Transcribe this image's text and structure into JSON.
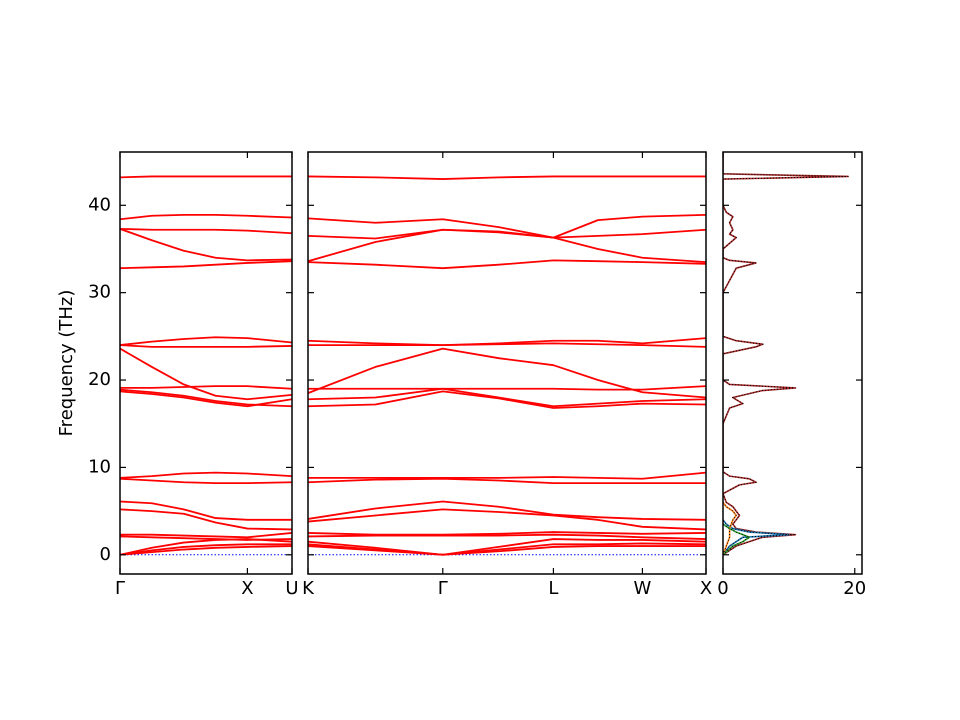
{
  "chart_data": [
    {
      "type": "line",
      "ylabel": "Frequency (THz)",
      "color": "#ff0000",
      "zero_line": true,
      "x": [
        0,
        0.25,
        0.5,
        0.75,
        1.0,
        1.35
      ],
      "xlim": [
        0,
        1.35
      ],
      "xticks": [
        {
          "value": 0,
          "label": "Γ"
        },
        {
          "value": 1.0,
          "label": "X"
        },
        {
          "value": 1.35,
          "label": "U"
        }
      ],
      "ylim": [
        -2.2,
        46.1
      ],
      "yticks": [
        0,
        10,
        20,
        30,
        40
      ],
      "series": [
        {
          "values": [
            43.2,
            43.3,
            43.3,
            43.3,
            43.3,
            43.3
          ]
        },
        {
          "values": [
            38.4,
            38.8,
            38.9,
            38.9,
            38.8,
            38.6
          ]
        },
        {
          "values": [
            37.3,
            37.2,
            37.2,
            37.2,
            37.1,
            36.8
          ]
        },
        {
          "values": [
            37.3,
            36.0,
            34.8,
            34.0,
            33.7,
            33.8
          ]
        },
        {
          "values": [
            32.8,
            32.9,
            33.0,
            33.2,
            33.4,
            33.6
          ]
        },
        {
          "values": [
            24.0,
            24.4,
            24.7,
            24.9,
            24.8,
            24.3
          ]
        },
        {
          "values": [
            24.0,
            23.8,
            23.8,
            23.8,
            23.8,
            23.9
          ]
        },
        {
          "values": [
            23.6,
            21.5,
            19.5,
            18.2,
            17.8,
            18.3
          ]
        },
        {
          "values": [
            19.1,
            19.1,
            19.2,
            19.3,
            19.3,
            19.0
          ]
        },
        {
          "values": [
            18.9,
            18.6,
            18.2,
            17.6,
            17.2,
            17.0
          ]
        },
        {
          "values": [
            18.7,
            18.4,
            18.0,
            17.4,
            17.0,
            17.8
          ]
        },
        {
          "values": [
            8.8,
            9.0,
            9.3,
            9.4,
            9.3,
            9.0
          ]
        },
        {
          "values": [
            8.7,
            8.5,
            8.3,
            8.2,
            8.2,
            8.3
          ]
        },
        {
          "values": [
            6.1,
            5.9,
            5.2,
            4.2,
            4.0,
            4.0
          ]
        },
        {
          "values": [
            5.2,
            5.0,
            4.7,
            3.7,
            3.0,
            2.9
          ]
        },
        {
          "values": [
            2.3,
            2.3,
            2.2,
            2.1,
            2.0,
            2.5
          ]
        },
        {
          "values": [
            2.1,
            2.0,
            1.9,
            1.8,
            1.7,
            1.8
          ]
        },
        {
          "values": [
            0,
            0.8,
            1.4,
            1.7,
            1.8,
            1.5
          ]
        },
        {
          "values": [
            0,
            0.5,
            0.9,
            1.1,
            1.2,
            1.2
          ]
        },
        {
          "values": [
            0,
            0.3,
            0.6,
            0.8,
            0.9,
            1.0
          ]
        }
      ]
    },
    {
      "type": "line",
      "color": "#ff0000",
      "zero_line": true,
      "sharey": true,
      "x": [
        0,
        0.53,
        1.06,
        1.5,
        1.93,
        2.28,
        2.63,
        3.13
      ],
      "xlim": [
        0,
        3.13
      ],
      "xticks": [
        {
          "value": 0,
          "label": "K"
        },
        {
          "value": 1.06,
          "label": "Γ"
        },
        {
          "value": 1.93,
          "label": "L"
        },
        {
          "value": 2.63,
          "label": "W"
        },
        {
          "value": 3.13,
          "label": "X"
        }
      ],
      "series": [
        {
          "values": [
            43.3,
            43.2,
            43.0,
            43.2,
            43.3,
            43.3,
            43.3,
            43.3
          ]
        },
        {
          "values": [
            38.5,
            38.0,
            38.4,
            37.5,
            36.3,
            38.3,
            38.7,
            38.9
          ]
        },
        {
          "values": [
            36.5,
            36.2,
            37.2,
            37.0,
            36.3,
            36.5,
            36.7,
            37.2
          ]
        },
        {
          "values": [
            33.6,
            35.8,
            37.2,
            36.9,
            36.3,
            35.0,
            34.0,
            33.5
          ]
        },
        {
          "values": [
            33.5,
            33.2,
            32.8,
            33.2,
            33.7,
            33.6,
            33.5,
            33.3
          ]
        },
        {
          "values": [
            24.5,
            24.2,
            24.0,
            24.2,
            24.5,
            24.5,
            24.2,
            24.8
          ]
        },
        {
          "values": [
            24.0,
            24.0,
            24.0,
            24.1,
            24.2,
            24.1,
            24.0,
            23.8
          ]
        },
        {
          "values": [
            18.5,
            21.5,
            23.6,
            22.5,
            21.7,
            20.0,
            18.6,
            18.0
          ]
        },
        {
          "values": [
            19.0,
            19.0,
            19.0,
            19.0,
            19.0,
            18.9,
            18.9,
            19.3
          ]
        },
        {
          "values": [
            17.8,
            18.0,
            19.0,
            18.0,
            17.0,
            17.3,
            17.6,
            17.8
          ]
        },
        {
          "values": [
            17.0,
            17.2,
            18.7,
            17.9,
            16.8,
            17.0,
            17.3,
            17.2
          ]
        },
        {
          "values": [
            8.8,
            8.8,
            8.8,
            8.8,
            8.9,
            8.8,
            8.7,
            9.4
          ]
        },
        {
          "values": [
            8.3,
            8.6,
            8.7,
            8.5,
            8.2,
            8.2,
            8.2,
            8.2
          ]
        },
        {
          "values": [
            4.1,
            5.3,
            6.1,
            5.5,
            4.6,
            4.3,
            4.1,
            4.0
          ]
        },
        {
          "values": [
            3.8,
            4.5,
            5.2,
            4.9,
            4.5,
            4.0,
            3.2,
            2.9
          ]
        },
        {
          "values": [
            2.5,
            2.3,
            2.3,
            2.4,
            2.6,
            2.5,
            2.4,
            2.5
          ]
        },
        {
          "values": [
            2.1,
            2.2,
            2.2,
            2.2,
            2.3,
            2.2,
            2.0,
            1.8
          ]
        },
        {
          "values": [
            1.5,
            0.8,
            0,
            0.9,
            1.8,
            1.7,
            1.7,
            1.5
          ]
        },
        {
          "values": [
            1.2,
            0.6,
            0,
            0.6,
            1.2,
            1.2,
            1.3,
            1.2
          ]
        },
        {
          "values": [
            1.0,
            0.5,
            0,
            0.4,
            0.9,
            1.0,
            1.0,
            1.0
          ]
        }
      ]
    },
    {
      "type": "dos",
      "sharey": true,
      "xlim": [
        0,
        21.1
      ],
      "xticks": [
        0,
        20
      ],
      "series": [
        {
          "color": "#a52a2a",
          "dotted_color": "#000000",
          "frequencies": [
            0,
            1,
            1.5,
            2,
            2.3,
            2.6,
            3,
            3.5,
            4,
            4.5,
            5,
            5.5,
            6,
            7,
            8,
            8.3,
            8.7,
            9,
            9.5,
            10,
            15,
            16.8,
            17.3,
            18,
            18.8,
            19.1,
            19.5,
            20,
            23,
            23.8,
            24.1,
            24.5,
            25,
            30,
            32.8,
            33.4,
            33.7,
            34,
            35,
            36.3,
            36.7,
            37.2,
            38,
            38.7,
            39.2,
            40,
            43,
            43.3,
            43.6,
            46
          ],
          "values": [
            0,
            2,
            4,
            6,
            11,
            5,
            2,
            1.5,
            2,
            2.5,
            2,
            1.5,
            0.5,
            0,
            2.5,
            5,
            4,
            1,
            0,
            0,
            0,
            1,
            3,
            1.5,
            6,
            11,
            1,
            0,
            0,
            5,
            6,
            2,
            0,
            0,
            2,
            5,
            1,
            0,
            0,
            2,
            1,
            1.5,
            1,
            1.5,
            0.5,
            0,
            0,
            19,
            0,
            0
          ]
        },
        {
          "color": "#1f77b4",
          "dotted_color": "#000000",
          "frequencies": [
            0,
            1,
            2,
            2.3,
            2.6,
            3,
            3.5,
            4
          ],
          "values": [
            0,
            1,
            3,
            10,
            4,
            1.5,
            0.5,
            0
          ]
        },
        {
          "color": "#ff7f0e",
          "dotted_color": "#000000",
          "frequencies": [
            0,
            1,
            2,
            3,
            4,
            4.5,
            5,
            5.5,
            6
          ],
          "values": [
            0,
            0.5,
            1,
            1,
            1.5,
            2,
            1.5,
            0.5,
            0
          ]
        },
        {
          "color": "#2ca02c",
          "dotted_color": "#000000",
          "frequencies": [
            0,
            1,
            1.5,
            2,
            2.3,
            2.6,
            3,
            3.5
          ],
          "values": [
            0,
            1.5,
            3,
            4,
            3,
            2,
            1,
            0
          ]
        }
      ]
    }
  ]
}
